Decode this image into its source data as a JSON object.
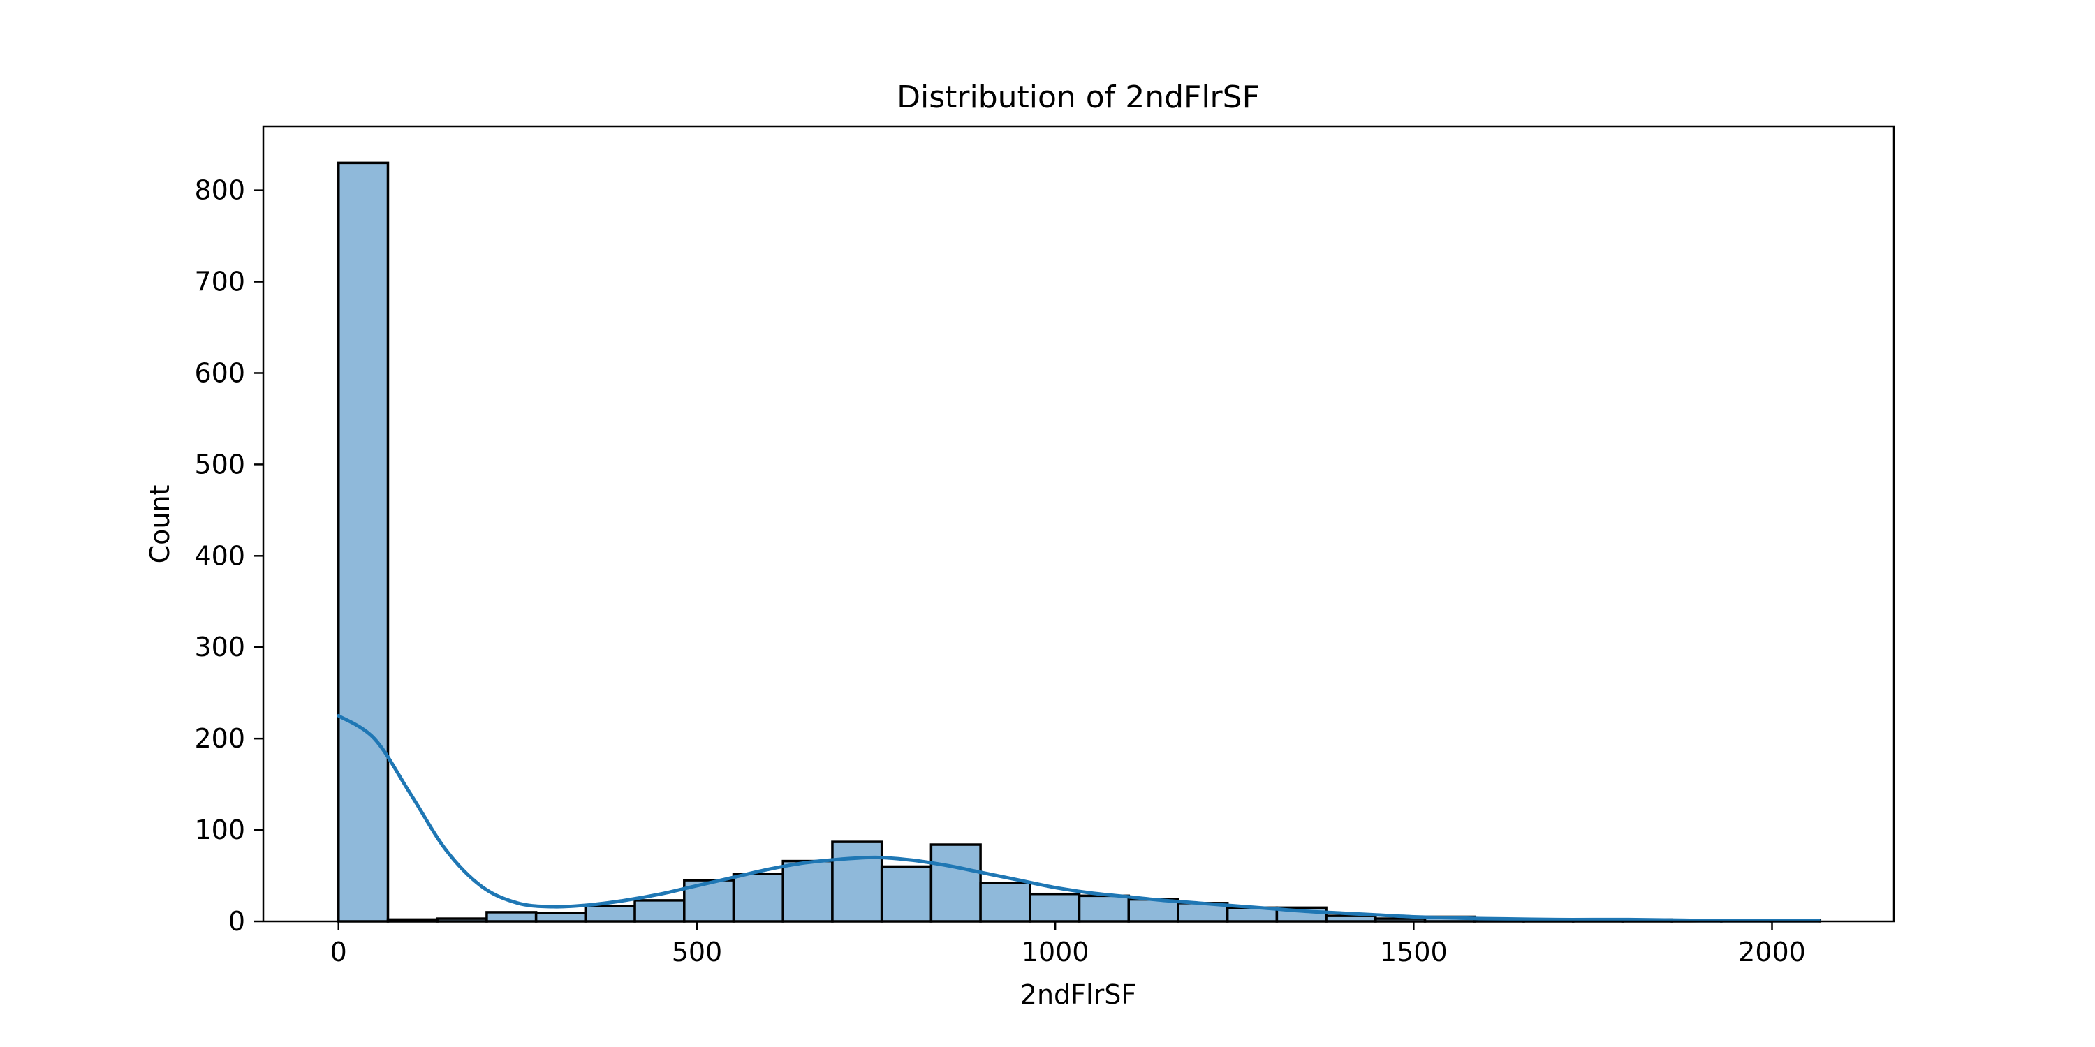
{
  "chart_data": {
    "type": "bar",
    "title": "Distribution of 2ndFlrSF",
    "xlabel": "2ndFlrSF",
    "ylabel": "Count",
    "xlim": [
      -105,
      2170
    ],
    "ylim": [
      0,
      870
    ],
    "xticks": [
      0,
      500,
      1000,
      1500,
      2000
    ],
    "xtick_labels": [
      "0",
      "500",
      "1000",
      "1500",
      "2000"
    ],
    "yticks": [
      0,
      100,
      200,
      300,
      400,
      500,
      600,
      700,
      800
    ],
    "ytick_labels": [
      "0",
      "100",
      "200",
      "300",
      "400",
      "500",
      "600",
      "700",
      "800"
    ],
    "grid": false,
    "bar_color": "#8fb9da",
    "edge_color": "#000000",
    "kde_color": "#1f77b4",
    "bins": {
      "start": 0,
      "width": 68.9,
      "counts": [
        830,
        2,
        3,
        10,
        9,
        17,
        23,
        45,
        52,
        66,
        87,
        60,
        84,
        42,
        30,
        28,
        24,
        20,
        15,
        15,
        6,
        3,
        5,
        1,
        1,
        1,
        2,
        1,
        1,
        1
      ]
    },
    "kde": {
      "x": [
        0,
        50,
        100,
        150,
        200,
        250,
        300,
        350,
        400,
        450,
        500,
        550,
        600,
        650,
        700,
        750,
        800,
        850,
        900,
        950,
        1000,
        1050,
        1100,
        1150,
        1200,
        1250,
        1300,
        1350,
        1400,
        1450,
        1500,
        1550,
        1600,
        1700,
        1800,
        1900,
        2000,
        2065
      ],
      "y": [
        225,
        200,
        140,
        78,
        38,
        20,
        16,
        18,
        23,
        30,
        39,
        48,
        57,
        64,
        68,
        70,
        67,
        61,
        53,
        45,
        37,
        31,
        27,
        23,
        20,
        17,
        14,
        11,
        9,
        7,
        5,
        4,
        3,
        2,
        2,
        1,
        1,
        1
      ]
    }
  }
}
